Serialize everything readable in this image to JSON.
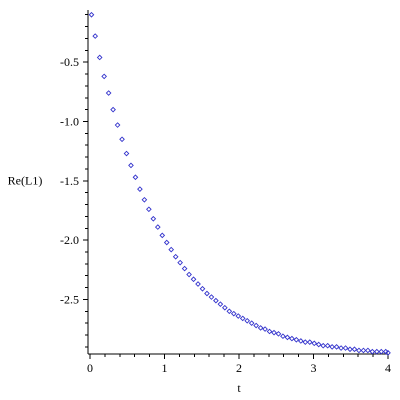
{
  "chart_data": {
    "type": "scatter",
    "title": "",
    "xlabel": "t",
    "ylabel": "Re(L1)",
    "xlim": [
      0,
      4
    ],
    "ylim": [
      -2.96,
      -0.06
    ],
    "x_ticks": [
      0,
      1,
      2,
      3,
      4
    ],
    "y_ticks": [
      -0.5,
      -1.0,
      -1.5,
      -2.0,
      -2.5
    ],
    "x_tick_labels": [
      "0",
      "1",
      "2",
      "3",
      "4"
    ],
    "y_tick_labels": [
      "-0.5",
      "-1.0",
      "-1.5",
      "-2.0",
      "-2.5"
    ],
    "grid": false,
    "marker": "diamond",
    "marker_color": "#3333cc",
    "series": [
      {
        "points": [
          [
            0.02,
            -0.1
          ],
          [
            0.07,
            -0.28
          ],
          [
            0.13,
            -0.46
          ],
          [
            0.19,
            -0.62
          ],
          [
            0.25,
            -0.76
          ],
          [
            0.31,
            -0.9
          ],
          [
            0.37,
            -1.03
          ],
          [
            0.43,
            -1.15
          ],
          [
            0.49,
            -1.27
          ],
          [
            0.55,
            -1.37
          ],
          [
            0.61,
            -1.47
          ],
          [
            0.67,
            -1.57
          ],
          [
            0.73,
            -1.66
          ],
          [
            0.79,
            -1.74
          ],
          [
            0.85,
            -1.82
          ],
          [
            0.91,
            -1.89
          ],
          [
            0.97,
            -1.96
          ],
          [
            1.03,
            -2.02
          ],
          [
            1.09,
            -2.08
          ],
          [
            1.15,
            -2.14
          ],
          [
            1.21,
            -2.19
          ],
          [
            1.27,
            -2.24
          ],
          [
            1.33,
            -2.29
          ],
          [
            1.39,
            -2.33
          ],
          [
            1.45,
            -2.37
          ],
          [
            1.51,
            -2.41
          ],
          [
            1.57,
            -2.45
          ],
          [
            1.63,
            -2.48
          ],
          [
            1.69,
            -2.51
          ],
          [
            1.75,
            -2.54
          ],
          [
            1.81,
            -2.57
          ],
          [
            1.87,
            -2.6
          ],
          [
            1.93,
            -2.62
          ],
          [
            1.99,
            -2.64
          ],
          [
            2.05,
            -2.66
          ],
          [
            2.11,
            -2.68
          ],
          [
            2.17,
            -2.7
          ],
          [
            2.23,
            -2.72
          ],
          [
            2.29,
            -2.74
          ],
          [
            2.35,
            -2.75
          ],
          [
            2.41,
            -2.77
          ],
          [
            2.47,
            -2.78
          ],
          [
            2.53,
            -2.79
          ],
          [
            2.59,
            -2.81
          ],
          [
            2.65,
            -2.82
          ],
          [
            2.71,
            -2.83
          ],
          [
            2.77,
            -2.84
          ],
          [
            2.83,
            -2.85
          ],
          [
            2.89,
            -2.86
          ],
          [
            2.95,
            -2.86
          ],
          [
            3.01,
            -2.87
          ],
          [
            3.07,
            -2.88
          ],
          [
            3.13,
            -2.89
          ],
          [
            3.19,
            -2.89
          ],
          [
            3.25,
            -2.9
          ],
          [
            3.31,
            -2.9
          ],
          [
            3.37,
            -2.91
          ],
          [
            3.43,
            -2.91
          ],
          [
            3.49,
            -2.92
          ],
          [
            3.55,
            -2.92
          ],
          [
            3.61,
            -2.93
          ],
          [
            3.67,
            -2.93
          ],
          [
            3.73,
            -2.93
          ],
          [
            3.79,
            -2.94
          ],
          [
            3.85,
            -2.94
          ],
          [
            3.91,
            -2.94
          ],
          [
            3.97,
            -2.94
          ],
          [
            4.0,
            -2.95
          ]
        ]
      }
    ]
  }
}
